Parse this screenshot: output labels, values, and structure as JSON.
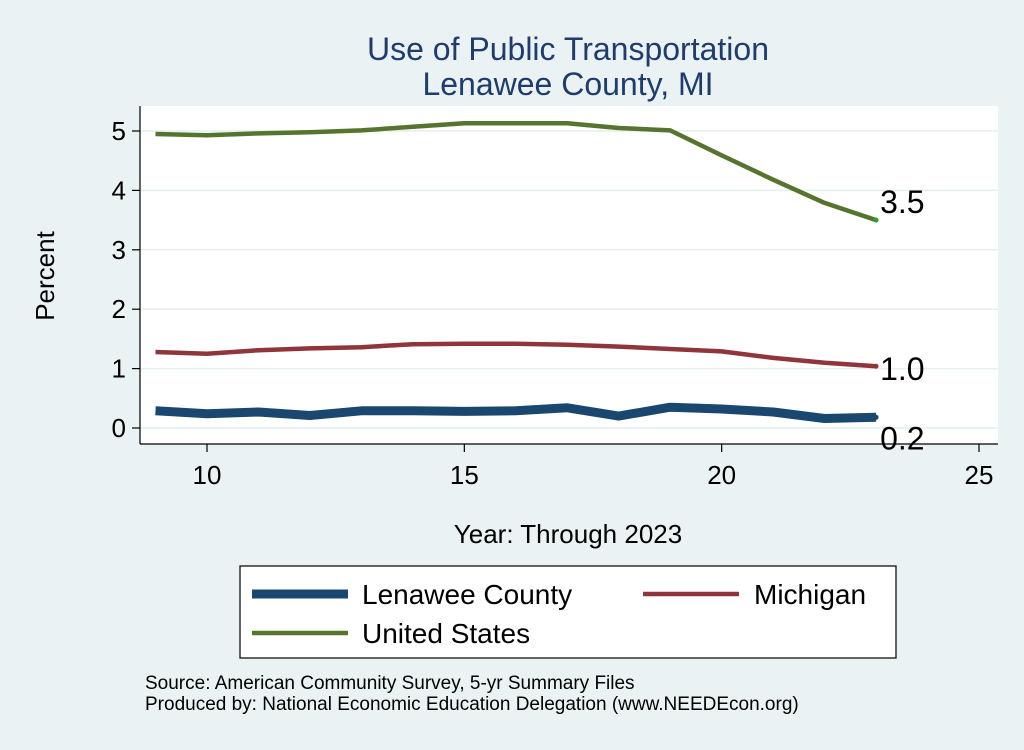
{
  "chart_data": {
    "type": "line",
    "title": "Use of Public Transportation",
    "subtitle": "Lenawee County, MI",
    "xlabel": "Year: Through 2023",
    "ylabel": "Percent",
    "xlim": [
      9,
      25
    ],
    "ylim": [
      0,
      5.2
    ],
    "xticks": [
      10,
      15,
      20,
      25
    ],
    "yticks": [
      0,
      1,
      2,
      3,
      4,
      5
    ],
    "grid": true,
    "legend_position": "bottom",
    "series": [
      {
        "name": "Lenawee County",
        "color": "#1A476F",
        "x": [
          9,
          10,
          11,
          12,
          13,
          14,
          15,
          16,
          17,
          18,
          19,
          20,
          21,
          22,
          23
        ],
        "values": [
          0.29,
          0.24,
          0.27,
          0.21,
          0.29,
          0.29,
          0.28,
          0.29,
          0.34,
          0.2,
          0.35,
          0.32,
          0.27,
          0.16,
          0.18
        ],
        "end_label": "0.2"
      },
      {
        "name": "Michigan",
        "color": "#90353B",
        "x": [
          9,
          10,
          11,
          12,
          13,
          14,
          15,
          16,
          17,
          18,
          19,
          20,
          21,
          22,
          23
        ],
        "values": [
          1.28,
          1.25,
          1.31,
          1.34,
          1.36,
          1.41,
          1.42,
          1.42,
          1.4,
          1.37,
          1.33,
          1.29,
          1.18,
          1.1,
          1.04
        ],
        "end_label": "1.0"
      },
      {
        "name": "United States",
        "color": "#55752F",
        "x": [
          9,
          10,
          11,
          12,
          13,
          14,
          15,
          16,
          17,
          18,
          19,
          20,
          21,
          22,
          23
        ],
        "values": [
          4.95,
          4.93,
          4.96,
          4.98,
          5.01,
          5.07,
          5.13,
          5.13,
          5.13,
          5.05,
          5.01,
          4.59,
          4.18,
          3.79,
          3.5
        ],
        "end_label": "3.5"
      }
    ]
  },
  "footer": {
    "source": "Source: American Community Survey, 5-yr Summary Files",
    "producer": "Produced by: National Economic Education Delegation (www.NEEDEcon.org)"
  }
}
